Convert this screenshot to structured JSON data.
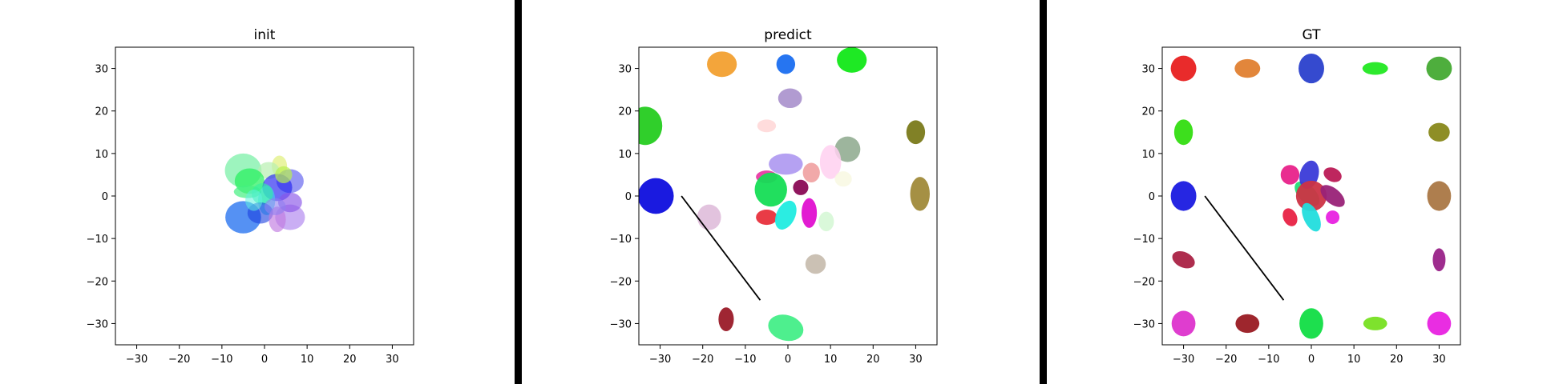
{
  "chart_data": [
    {
      "type": "scatter",
      "title": "init",
      "xlim": [
        -35,
        35
      ],
      "ylim": [
        -35,
        35
      ],
      "xticks": [
        -30,
        -20,
        -10,
        0,
        10,
        20,
        30
      ],
      "yticks": [
        -30,
        -20,
        -10,
        0,
        10,
        20,
        30
      ],
      "ellipses": [
        {
          "x": -5,
          "y": 6,
          "rx": 4.3,
          "ry": 4,
          "angle": 0,
          "color": "#7cf0a8",
          "alpha": 0.75
        },
        {
          "x": 3.5,
          "y": 7,
          "rx": 1.8,
          "ry": 2.5,
          "angle": 0,
          "color": "#e0f07a",
          "alpha": 0.7
        },
        {
          "x": 1,
          "y": 6,
          "rx": 2.5,
          "ry": 2,
          "angle": 0,
          "color": "#b8f0b0",
          "alpha": 0.7
        },
        {
          "x": -3.5,
          "y": 3.5,
          "rx": 3.5,
          "ry": 3,
          "angle": 0,
          "color": "#22f05a",
          "alpha": 0.7
        },
        {
          "x": -4,
          "y": 1,
          "rx": 3.2,
          "ry": 1.5,
          "angle": 0,
          "color": "#44f080",
          "alpha": 0.7
        },
        {
          "x": 6,
          "y": 3.5,
          "rx": 3.2,
          "ry": 2.8,
          "angle": 0,
          "color": "#6a6af0",
          "alpha": 0.7
        },
        {
          "x": 3,
          "y": 2,
          "rx": 3.5,
          "ry": 3.2,
          "angle": 0,
          "color": "#2222f0",
          "alpha": 0.65
        },
        {
          "x": 4.5,
          "y": 5,
          "rx": 2,
          "ry": 2,
          "angle": 0,
          "color": "#b8f050",
          "alpha": 0.7
        },
        {
          "x": 0.5,
          "y": -1,
          "rx": 2,
          "ry": 3.5,
          "angle": 0,
          "color": "#3fd0f0",
          "alpha": 0.65
        },
        {
          "x": -0.5,
          "y": 0.5,
          "rx": 2.5,
          "ry": 2.5,
          "angle": 0,
          "color": "#30f0a0",
          "alpha": 0.6
        },
        {
          "x": -5,
          "y": -5,
          "rx": 4.2,
          "ry": 3.8,
          "angle": 0,
          "color": "#2a76f0",
          "alpha": 0.8
        },
        {
          "x": -1,
          "y": -4,
          "rx": 3,
          "ry": 2.5,
          "angle": 0,
          "color": "#1a40e0",
          "alpha": 0.6
        },
        {
          "x": 6,
          "y": -5,
          "rx": 3.5,
          "ry": 3,
          "angle": 0,
          "color": "#b48cf0",
          "alpha": 0.7
        },
        {
          "x": 6,
          "y": -1.5,
          "rx": 2.8,
          "ry": 2.3,
          "angle": 0,
          "color": "#8855e8",
          "alpha": 0.65
        },
        {
          "x": 3,
          "y": -5.5,
          "rx": 2,
          "ry": 3,
          "angle": 0,
          "color": "#c07ae0",
          "alpha": 0.65
        },
        {
          "x": 2.5,
          "y": -2.5,
          "rx": 2.5,
          "ry": 2,
          "angle": 0,
          "color": "#9080f0",
          "alpha": 0.6
        },
        {
          "x": -2.5,
          "y": -1,
          "rx": 2,
          "ry": 2.5,
          "angle": 0,
          "color": "#60f0e0",
          "alpha": 0.55
        }
      ],
      "lines": []
    },
    {
      "type": "scatter",
      "title": "predict",
      "xlim": [
        -35,
        35
      ],
      "ylim": [
        -35,
        35
      ],
      "xticks": [
        -30,
        -20,
        -10,
        0,
        10,
        20,
        30
      ],
      "yticks": [
        -30,
        -20,
        -10,
        0,
        10,
        20,
        30
      ],
      "ellipses": [
        {
          "x": -15.5,
          "y": 31,
          "rx": 3.5,
          "ry": 3,
          "angle": 0,
          "color": "#f2a030",
          "alpha": 0.95
        },
        {
          "x": -0.5,
          "y": 31,
          "rx": 2.2,
          "ry": 2.3,
          "angle": 0,
          "color": "#1a6ef0",
          "alpha": 0.95
        },
        {
          "x": 15,
          "y": 32,
          "rx": 3.5,
          "ry": 3,
          "angle": 0,
          "color": "#12e818",
          "alpha": 0.95
        },
        {
          "x": 0.5,
          "y": 23,
          "rx": 2.8,
          "ry": 2.3,
          "angle": 0,
          "color": "#a890cc",
          "alpha": 0.9
        },
        {
          "x": -33.5,
          "y": 16.5,
          "rx": 4,
          "ry": 4.5,
          "angle": 0,
          "color": "#25cc20",
          "alpha": 0.95
        },
        {
          "x": -5,
          "y": 16.5,
          "rx": 2.2,
          "ry": 1.5,
          "angle": 0,
          "color": "#ffd8d8",
          "alpha": 0.9
        },
        {
          "x": 30,
          "y": 15,
          "rx": 2.2,
          "ry": 2.8,
          "angle": 0,
          "color": "#7a7a1a",
          "alpha": 0.95
        },
        {
          "x": 14,
          "y": 11,
          "rx": 3,
          "ry": 3,
          "angle": 0,
          "color": "#8ca88c",
          "alpha": 0.85
        },
        {
          "x": 10,
          "y": 8,
          "rx": 2.5,
          "ry": 4,
          "angle": 0,
          "color": "#ffd0f0",
          "alpha": 0.85
        },
        {
          "x": 13,
          "y": 4,
          "rx": 2,
          "ry": 1.8,
          "angle": 0,
          "color": "#f8f8e0",
          "alpha": 0.8
        },
        {
          "x": -0.5,
          "y": 7.5,
          "rx": 4,
          "ry": 2.5,
          "angle": 0,
          "color": "#a890f0",
          "alpha": 0.85
        },
        {
          "x": 5.5,
          "y": 5.5,
          "rx": 2,
          "ry": 2.3,
          "angle": 0,
          "color": "#f0a0a0",
          "alpha": 0.9
        },
        {
          "x": -5,
          "y": 4.5,
          "rx": 2.5,
          "ry": 1.5,
          "angle": 0,
          "color": "#e830a0",
          "alpha": 0.9
        },
        {
          "x": -4,
          "y": 1.5,
          "rx": 3.8,
          "ry": 4,
          "angle": 0,
          "color": "#15dd55",
          "alpha": 0.95
        },
        {
          "x": 3,
          "y": 2,
          "rx": 1.8,
          "ry": 1.8,
          "angle": 0,
          "color": "#8a0a55",
          "alpha": 0.95
        },
        {
          "x": -31,
          "y": 0,
          "rx": 4.2,
          "ry": 4.2,
          "angle": 0,
          "color": "#1a1ae0",
          "alpha": 1.0
        },
        {
          "x": 31,
          "y": 0.5,
          "rx": 2.3,
          "ry": 4,
          "angle": 0,
          "color": "#a08a3a",
          "alpha": 0.95
        },
        {
          "x": -18.5,
          "y": -5,
          "rx": 2.8,
          "ry": 3,
          "angle": 0,
          "color": "#e0c0dc",
          "alpha": 0.95
        },
        {
          "x": -5,
          "y": -5,
          "rx": 2.5,
          "ry": 1.8,
          "angle": 0,
          "color": "#e8303c",
          "alpha": 0.95
        },
        {
          "x": -0.5,
          "y": -4.5,
          "rx": 2.2,
          "ry": 3.6,
          "angle": -25,
          "color": "#20ece0",
          "alpha": 0.95
        },
        {
          "x": 5,
          "y": -4,
          "rx": 1.8,
          "ry": 3.5,
          "angle": 0,
          "color": "#e010d0",
          "alpha": 0.95
        },
        {
          "x": 9,
          "y": -6,
          "rx": 1.8,
          "ry": 2.3,
          "angle": 0,
          "color": "#d8f8d8",
          "alpha": 0.95
        },
        {
          "x": 6.5,
          "y": -16,
          "rx": 2.4,
          "ry": 2.3,
          "angle": 0,
          "color": "#c8beb0",
          "alpha": 0.95
        },
        {
          "x": -14.5,
          "y": -29,
          "rx": 1.8,
          "ry": 2.8,
          "angle": 0,
          "color": "#9a1a28",
          "alpha": 0.95
        },
        {
          "x": -0.5,
          "y": -31,
          "rx": 4.2,
          "ry": 3,
          "angle": -15,
          "color": "#44ee88",
          "alpha": 0.95
        }
      ],
      "lines": [
        {
          "x1": -25,
          "y1": 0,
          "x2": -6.5,
          "y2": -24.5,
          "color": "#000000"
        }
      ]
    },
    {
      "type": "scatter",
      "title": "GT",
      "xlim": [
        -35,
        35
      ],
      "ylim": [
        -35,
        35
      ],
      "xticks": [
        -30,
        -20,
        -10,
        0,
        10,
        20,
        30
      ],
      "yticks": [
        -30,
        -20,
        -10,
        0,
        10,
        20,
        30
      ],
      "ellipses": [
        {
          "x": -30,
          "y": 30,
          "rx": 3,
          "ry": 3,
          "angle": 0,
          "color": "#e82020",
          "alpha": 0.95
        },
        {
          "x": -15,
          "y": 30,
          "rx": 3,
          "ry": 2.2,
          "angle": 0,
          "color": "#e08030",
          "alpha": 0.95
        },
        {
          "x": 0,
          "y": 30,
          "rx": 3,
          "ry": 3.5,
          "angle": 0,
          "color": "#2a40cc",
          "alpha": 0.95
        },
        {
          "x": 15,
          "y": 30,
          "rx": 3,
          "ry": 1.5,
          "angle": 0,
          "color": "#22e822",
          "alpha": 0.95
        },
        {
          "x": 30,
          "y": 30,
          "rx": 3,
          "ry": 2.8,
          "angle": 0,
          "color": "#44aa33",
          "alpha": 0.95
        },
        {
          "x": -30,
          "y": 15,
          "rx": 2.2,
          "ry": 3,
          "angle": 0,
          "color": "#33dd11",
          "alpha": 0.95
        },
        {
          "x": 30,
          "y": 15,
          "rx": 2.5,
          "ry": 2.2,
          "angle": 0,
          "color": "#88881a",
          "alpha": 0.95
        },
        {
          "x": -30,
          "y": 0,
          "rx": 3,
          "ry": 3.5,
          "angle": 0,
          "color": "#1a1ae0",
          "alpha": 0.95
        },
        {
          "x": 30,
          "y": 0,
          "rx": 2.8,
          "ry": 3.5,
          "angle": 0,
          "color": "#aa7744",
          "alpha": 0.95
        },
        {
          "x": -30,
          "y": -15,
          "rx": 2.8,
          "ry": 1.8,
          "angle": -25,
          "color": "#aa2244",
          "alpha": 0.95
        },
        {
          "x": 30,
          "y": -15,
          "rx": 1.5,
          "ry": 2.7,
          "angle": 0,
          "color": "#992288",
          "alpha": 0.95
        },
        {
          "x": -30,
          "y": -30,
          "rx": 2.8,
          "ry": 3,
          "angle": 0,
          "color": "#dd33cc",
          "alpha": 0.95
        },
        {
          "x": -15,
          "y": -30,
          "rx": 2.8,
          "ry": 2.2,
          "angle": 0,
          "color": "#991a22",
          "alpha": 0.95
        },
        {
          "x": 0,
          "y": -30,
          "rx": 2.8,
          "ry": 3.6,
          "angle": 0,
          "color": "#11dd44",
          "alpha": 0.95
        },
        {
          "x": 15,
          "y": -30,
          "rx": 2.8,
          "ry": 1.6,
          "angle": 0,
          "color": "#77e022",
          "alpha": 0.95
        },
        {
          "x": 30,
          "y": -30,
          "rx": 2.8,
          "ry": 2.8,
          "angle": 0,
          "color": "#e822e0",
          "alpha": 0.95
        },
        {
          "x": -5,
          "y": 5,
          "rx": 2.2,
          "ry": 2.3,
          "angle": 0,
          "color": "#e8228a",
          "alpha": 0.95
        },
        {
          "x": -1,
          "y": 0.5,
          "rx": 2,
          "ry": 3.6,
          "angle": 45,
          "color": "#22dd77",
          "alpha": 0.95
        },
        {
          "x": -0.5,
          "y": 5,
          "rx": 2.2,
          "ry": 3.4,
          "angle": -15,
          "color": "#3a3ad8",
          "alpha": 0.95
        },
        {
          "x": 5,
          "y": 5,
          "rx": 2.2,
          "ry": 1.6,
          "angle": -25,
          "color": "#bb1a55",
          "alpha": 0.95
        },
        {
          "x": 0,
          "y": 0,
          "rx": 3.6,
          "ry": 3.6,
          "angle": 0,
          "color": "#cc3344",
          "alpha": 0.95
        },
        {
          "x": 5,
          "y": 0,
          "rx": 1.8,
          "ry": 3.4,
          "angle": 50,
          "color": "#992277",
          "alpha": 0.95
        },
        {
          "x": -5,
          "y": -5,
          "rx": 1.6,
          "ry": 2.2,
          "angle": 25,
          "color": "#e82244",
          "alpha": 0.95
        },
        {
          "x": 0,
          "y": -5,
          "rx": 1.8,
          "ry": 3.6,
          "angle": 25,
          "color": "#22dddd",
          "alpha": 0.95
        },
        {
          "x": 5,
          "y": -5,
          "rx": 1.6,
          "ry": 1.6,
          "angle": 0,
          "color": "#e822e0",
          "alpha": 0.95
        }
      ],
      "lines": [
        {
          "x1": -25,
          "y1": 0,
          "x2": -6.5,
          "y2": -24.5,
          "color": "#000000"
        }
      ]
    }
  ],
  "separator_color": "#000000"
}
